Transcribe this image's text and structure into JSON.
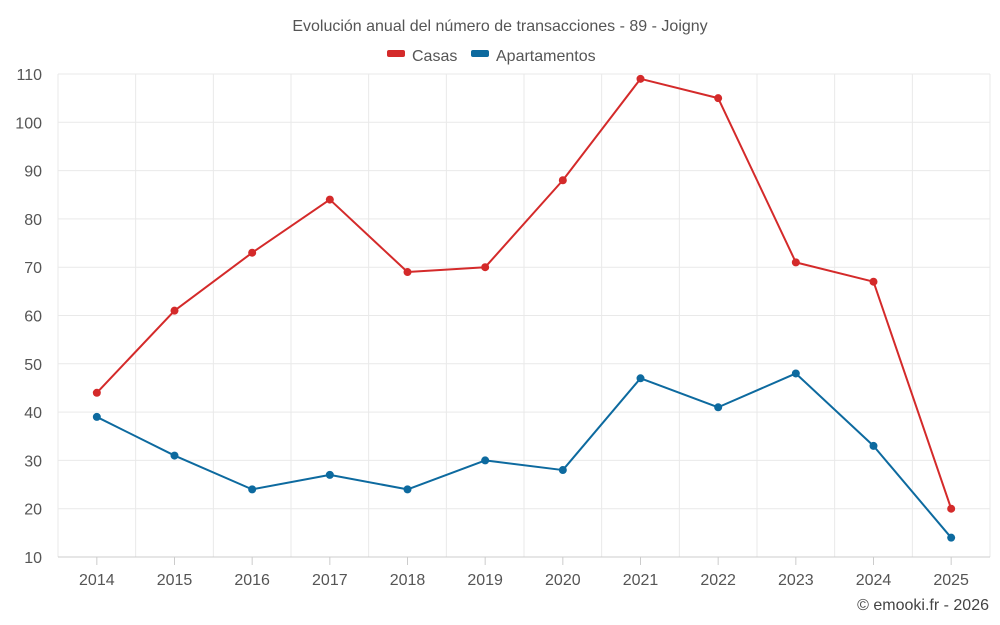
{
  "chart_data": {
    "type": "line",
    "title": "Evolución anual del número de transacciones - 89 - Joigny",
    "xlabel": "",
    "ylabel": "",
    "categories": [
      "2014",
      "2015",
      "2016",
      "2017",
      "2018",
      "2019",
      "2020",
      "2021",
      "2022",
      "2023",
      "2024",
      "2025"
    ],
    "ylim": [
      10,
      110
    ],
    "yticks": [
      10,
      20,
      30,
      40,
      50,
      60,
      70,
      80,
      90,
      100,
      110
    ],
    "grid": true,
    "legend_position": "top-center",
    "series": [
      {
        "name": "Casas",
        "color": "#d42a2a",
        "values": [
          44,
          61,
          73,
          84,
          69,
          70,
          88,
          109,
          105,
          71,
          67,
          20
        ]
      },
      {
        "name": "Apartamentos",
        "color": "#0d6a9f",
        "values": [
          39,
          31,
          24,
          27,
          24,
          30,
          28,
          47,
          41,
          48,
          33,
          14
        ]
      }
    ],
    "credit": "© emooki.fr - 2026"
  }
}
